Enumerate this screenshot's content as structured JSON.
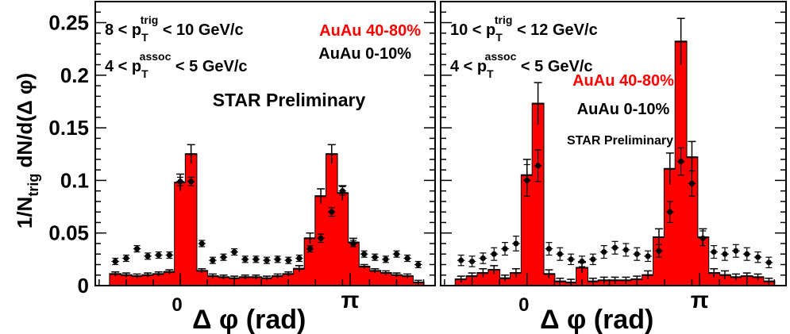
{
  "chart_data": [
    {
      "type": "bar",
      "panel": "left",
      "ylabel": "1/N_trig dN/d(Δ φ)",
      "xlabel": "Δ φ (rad)",
      "xtick_labels": [
        "0",
        "π"
      ],
      "ytick_labels": [
        "0",
        "0.05",
        "0.1",
        "0.15",
        "0.2",
        "0.25"
      ],
      "ylim": [
        0,
        0.27
      ],
      "xlim": [
        -1.571,
        4.712
      ],
      "grid": false,
      "annotations": {
        "trig_cut": {
          "low": "8",
          "high": "10 GeV/c",
          "var": "p",
          "sub": "T",
          "sup": "trig"
        },
        "assoc_cut": {
          "low": "4",
          "high": "5 GeV/c",
          "var": "p",
          "sub": "T",
          "sup": "assoc"
        },
        "legend_red": "AuAu 40-80%",
        "legend_black": "AuAu 0-10%",
        "preliminary": "STAR Preliminary"
      },
      "series": [
        {
          "name": "AuAu 40-80%",
          "color": "#ff0000",
          "style": "histogram",
          "x": [
            -1.2,
            -1.0,
            -0.8,
            -0.6,
            -0.4,
            -0.2,
            0.0,
            0.2,
            0.4,
            0.6,
            0.8,
            1.0,
            1.2,
            1.4,
            1.6,
            1.8,
            2.0,
            2.2,
            2.4,
            2.6,
            2.8,
            3.0,
            3.2,
            3.4,
            3.6,
            3.8,
            4.0,
            4.2,
            4.4
          ],
          "values": [
            0.011,
            0.01,
            0.009,
            0.01,
            0.011,
            0.013,
            0.098,
            0.125,
            0.014,
            0.009,
            0.008,
            0.007,
            0.008,
            0.008,
            0.007,
            0.009,
            0.011,
            0.016,
            0.045,
            0.085,
            0.125,
            0.088,
            0.041,
            0.018,
            0.014,
            0.012,
            0.01,
            0.009,
            0.003
          ],
          "errors": [
            0.002,
            0.002,
            0.002,
            0.002,
            0.002,
            0.002,
            0.008,
            0.009,
            0.002,
            0.002,
            0.002,
            0.002,
            0.002,
            0.002,
            0.002,
            0.002,
            0.002,
            0.003,
            0.005,
            0.007,
            0.009,
            0.007,
            0.004,
            0.002,
            0.002,
            0.002,
            0.002,
            0.002,
            0.002
          ]
        },
        {
          "name": "AuAu 0-10%",
          "color": "#000000",
          "style": "markers",
          "x": [
            -1.2,
            -1.0,
            -0.8,
            -0.6,
            -0.4,
            -0.2,
            0.0,
            0.2,
            0.4,
            0.6,
            0.8,
            1.0,
            1.2,
            1.4,
            1.6,
            1.8,
            2.0,
            2.2,
            2.4,
            2.6,
            2.8,
            3.0,
            3.2,
            3.4,
            3.6,
            3.8,
            4.0,
            4.2,
            4.4
          ],
          "values": [
            0.023,
            0.026,
            0.035,
            0.028,
            0.029,
            0.029,
            0.099,
            0.099,
            0.04,
            0.024,
            0.027,
            0.032,
            0.025,
            0.025,
            0.024,
            0.025,
            0.024,
            0.026,
            0.035,
            0.045,
            0.07,
            0.09,
            0.04,
            0.03,
            0.027,
            0.025,
            0.03,
            0.026,
            0.02
          ],
          "errors": [
            0.003,
            0.003,
            0.003,
            0.003,
            0.003,
            0.003,
            0.004,
            0.004,
            0.003,
            0.003,
            0.003,
            0.003,
            0.003,
            0.003,
            0.003,
            0.003,
            0.003,
            0.003,
            0.003,
            0.004,
            0.004,
            0.004,
            0.003,
            0.003,
            0.003,
            0.003,
            0.003,
            0.003,
            0.003
          ]
        }
      ]
    },
    {
      "type": "bar",
      "panel": "right",
      "xlabel": "Δ φ (rad)",
      "xtick_labels": [
        "0",
        "π"
      ],
      "ylim": [
        0,
        0.27
      ],
      "xlim": [
        -1.571,
        4.712
      ],
      "grid": false,
      "annotations": {
        "trig_cut": {
          "low": "10",
          "high": "12 GeV/c",
          "var": "p",
          "sub": "T",
          "sup": "trig"
        },
        "assoc_cut": {
          "low": "4",
          "high": "5 GeV/c",
          "var": "p",
          "sub": "T",
          "sup": "assoc"
        },
        "legend_red": "AuAu 40-80%",
        "legend_black": "AuAu 0-10%",
        "preliminary": "STAR Preliminary"
      },
      "series": [
        {
          "name": "AuAu 40-80%",
          "color": "#ff0000",
          "style": "histogram",
          "x": [
            -1.2,
            -1.0,
            -0.8,
            -0.6,
            -0.4,
            -0.2,
            0.0,
            0.2,
            0.4,
            0.6,
            0.8,
            1.0,
            1.2,
            1.4,
            1.6,
            1.8,
            2.0,
            2.2,
            2.4,
            2.6,
            2.8,
            3.0,
            3.2,
            3.4,
            3.6,
            3.8,
            4.0,
            4.2,
            4.4
          ],
          "values": [
            0.006,
            0.009,
            0.012,
            0.015,
            0.007,
            0.012,
            0.105,
            0.173,
            0.011,
            0.004,
            0.003,
            0.017,
            0.004,
            0.005,
            0.005,
            0.005,
            0.006,
            0.01,
            0.046,
            0.111,
            0.232,
            0.122,
            0.046,
            0.012,
            0.01,
            0.008,
            0.009,
            0.008,
            0.004
          ],
          "errors": [
            0.003,
            0.003,
            0.004,
            0.004,
            0.003,
            0.004,
            0.015,
            0.02,
            0.004,
            0.003,
            0.003,
            0.005,
            0.003,
            0.003,
            0.003,
            0.003,
            0.003,
            0.004,
            0.008,
            0.015,
            0.022,
            0.015,
            0.008,
            0.004,
            0.004,
            0.003,
            0.003,
            0.003,
            0.003
          ]
        },
        {
          "name": "AuAu 0-10%",
          "color": "#000000",
          "style": "markers",
          "x": [
            -1.2,
            -1.0,
            -0.8,
            -0.6,
            -0.4,
            -0.2,
            0.0,
            0.2,
            0.4,
            0.6,
            0.8,
            1.0,
            1.2,
            1.4,
            1.6,
            1.8,
            2.0,
            2.2,
            2.4,
            2.6,
            2.8,
            3.0,
            3.2,
            3.4,
            3.6,
            3.8,
            4.0,
            4.2,
            4.4
          ],
          "values": [
            0.024,
            0.023,
            0.026,
            0.03,
            0.035,
            0.04,
            0.1,
            0.114,
            0.035,
            0.03,
            0.025,
            0.023,
            0.025,
            0.032,
            0.036,
            0.034,
            0.03,
            0.028,
            0.033,
            0.07,
            0.118,
            0.097,
            0.045,
            0.032,
            0.03,
            0.033,
            0.03,
            0.027,
            0.022
          ],
          "errors": [
            0.005,
            0.005,
            0.005,
            0.006,
            0.006,
            0.007,
            0.015,
            0.015,
            0.006,
            0.006,
            0.005,
            0.005,
            0.005,
            0.006,
            0.006,
            0.006,
            0.006,
            0.005,
            0.006,
            0.01,
            0.013,
            0.012,
            0.007,
            0.006,
            0.006,
            0.006,
            0.006,
            0.005,
            0.005
          ]
        }
      ]
    }
  ]
}
